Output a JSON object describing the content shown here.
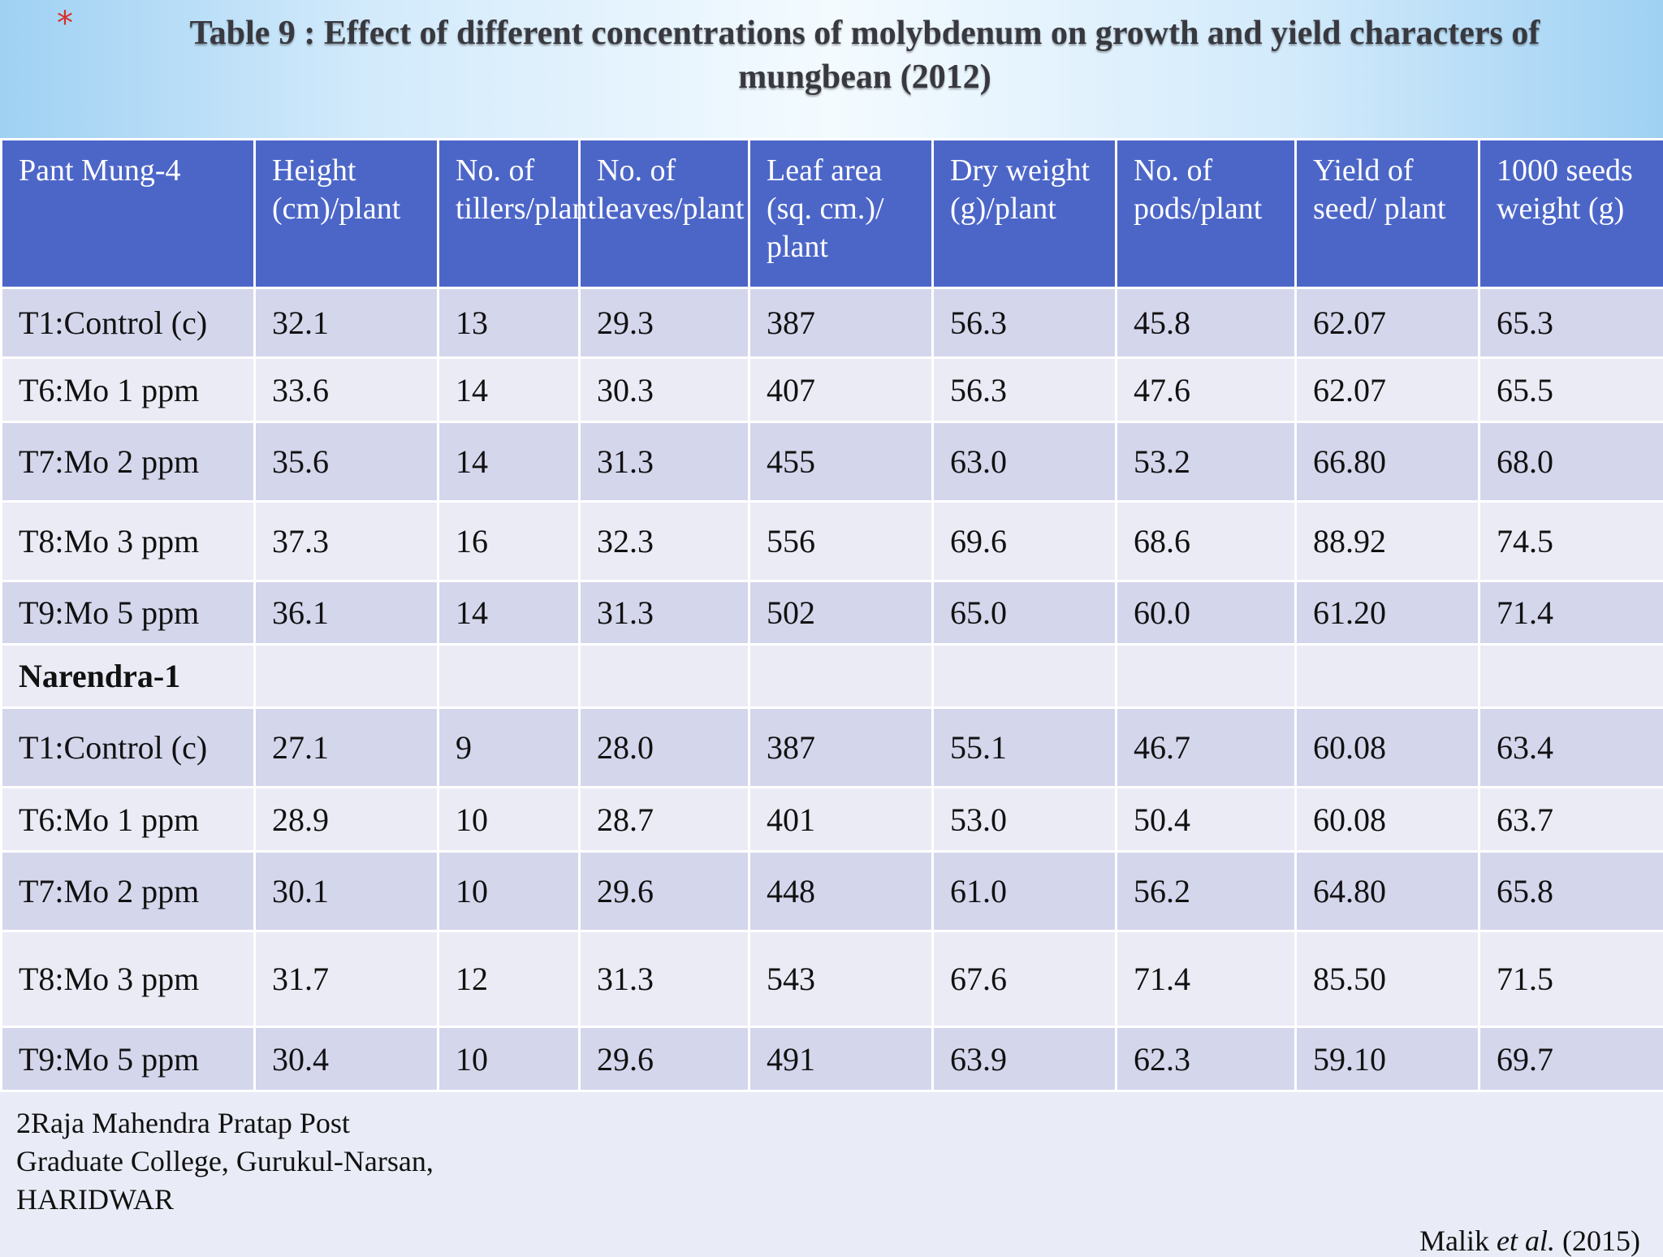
{
  "slide": {
    "bullet": "*",
    "title_line1": "Table 9 : Effect of different concentrations of molybdenum on growth and yield characters of",
    "title_line2": "mungbean (2012)"
  },
  "table": {
    "headers": [
      "Pant Mung-4",
      "Height (cm)/plant",
      "No. of tillers/plant",
      "No. of leaves/plant",
      "Leaf area (sq. cm.)/ plant",
      "Dry weight (g)/plant",
      "No. of pods/plant",
      "Yield of seed/ plant",
      "1000 seeds weight (g)"
    ],
    "rows": [
      {
        "cells": [
          "T1:Control (c)",
          "32.1",
          "13",
          "29.3",
          "387",
          "56.3",
          "45.8",
          "62.07",
          "65.3"
        ]
      },
      {
        "cells": [
          "T6:Mo 1 ppm",
          "33.6",
          "14",
          "30.3",
          "407",
          "56.3",
          "47.6",
          "62.07",
          "65.5"
        ]
      },
      {
        "cells": [
          "T7:Mo 2 ppm",
          "35.6",
          "14",
          "31.3",
          "455",
          "63.0",
          "53.2",
          "66.80",
          "68.0"
        ]
      },
      {
        "cells": [
          "T8:Mo 3 ppm",
          "37.3",
          "16",
          "32.3",
          "556",
          "69.6",
          "68.6",
          "88.92",
          "74.5"
        ]
      },
      {
        "cells": [
          "T9:Mo 5 ppm",
          "36.1",
          "14",
          "31.3",
          "502",
          "65.0",
          "60.0",
          "61.20",
          "71.4"
        ]
      },
      {
        "cells": [
          "Narendra-1",
          "",
          "",
          "",
          "",
          "",
          "",
          "",
          ""
        ]
      },
      {
        "cells": [
          "T1:Control (c)",
          "27.1",
          "9",
          "28.0",
          "387",
          "55.1",
          "46.7",
          "60.08",
          "63.4"
        ]
      },
      {
        "cells": [
          "T6:Mo 1 ppm",
          "28.9",
          "10",
          "28.7",
          "401",
          "53.0",
          "50.4",
          "60.08",
          "63.7"
        ]
      },
      {
        "cells": [
          "T7:Mo 2 ppm",
          "30.1",
          "10",
          "29.6",
          "448",
          "61.0",
          "56.2",
          "64.80",
          "65.8"
        ]
      },
      {
        "cells": [
          "T8:Mo 3 ppm",
          "31.7",
          "12",
          "31.3",
          "543",
          "67.6",
          "71.4",
          "85.50",
          "71.5"
        ]
      },
      {
        "cells": [
          "T9:Mo 5 ppm",
          "30.4",
          "10",
          "29.6",
          "491",
          "63.9",
          "62.3",
          "59.10",
          "69.7"
        ]
      }
    ]
  },
  "footer": {
    "line1": "2Raja Mahendra Pratap Post",
    "line2": "Graduate College, Gurukul-Narsan,",
    "line3": "HARIDWAR"
  },
  "citation": {
    "author": "Malik ",
    "etal": "et al.",
    "year": " (2015)"
  },
  "colors": {
    "header_bg": "#4c66c8",
    "row_dark": "#d4d6ec",
    "row_light": "#eaebf5",
    "highlight_blue": "#2a7fc9",
    "highlight_red": "#e8141c",
    "bullet_red": "#d9302c"
  }
}
